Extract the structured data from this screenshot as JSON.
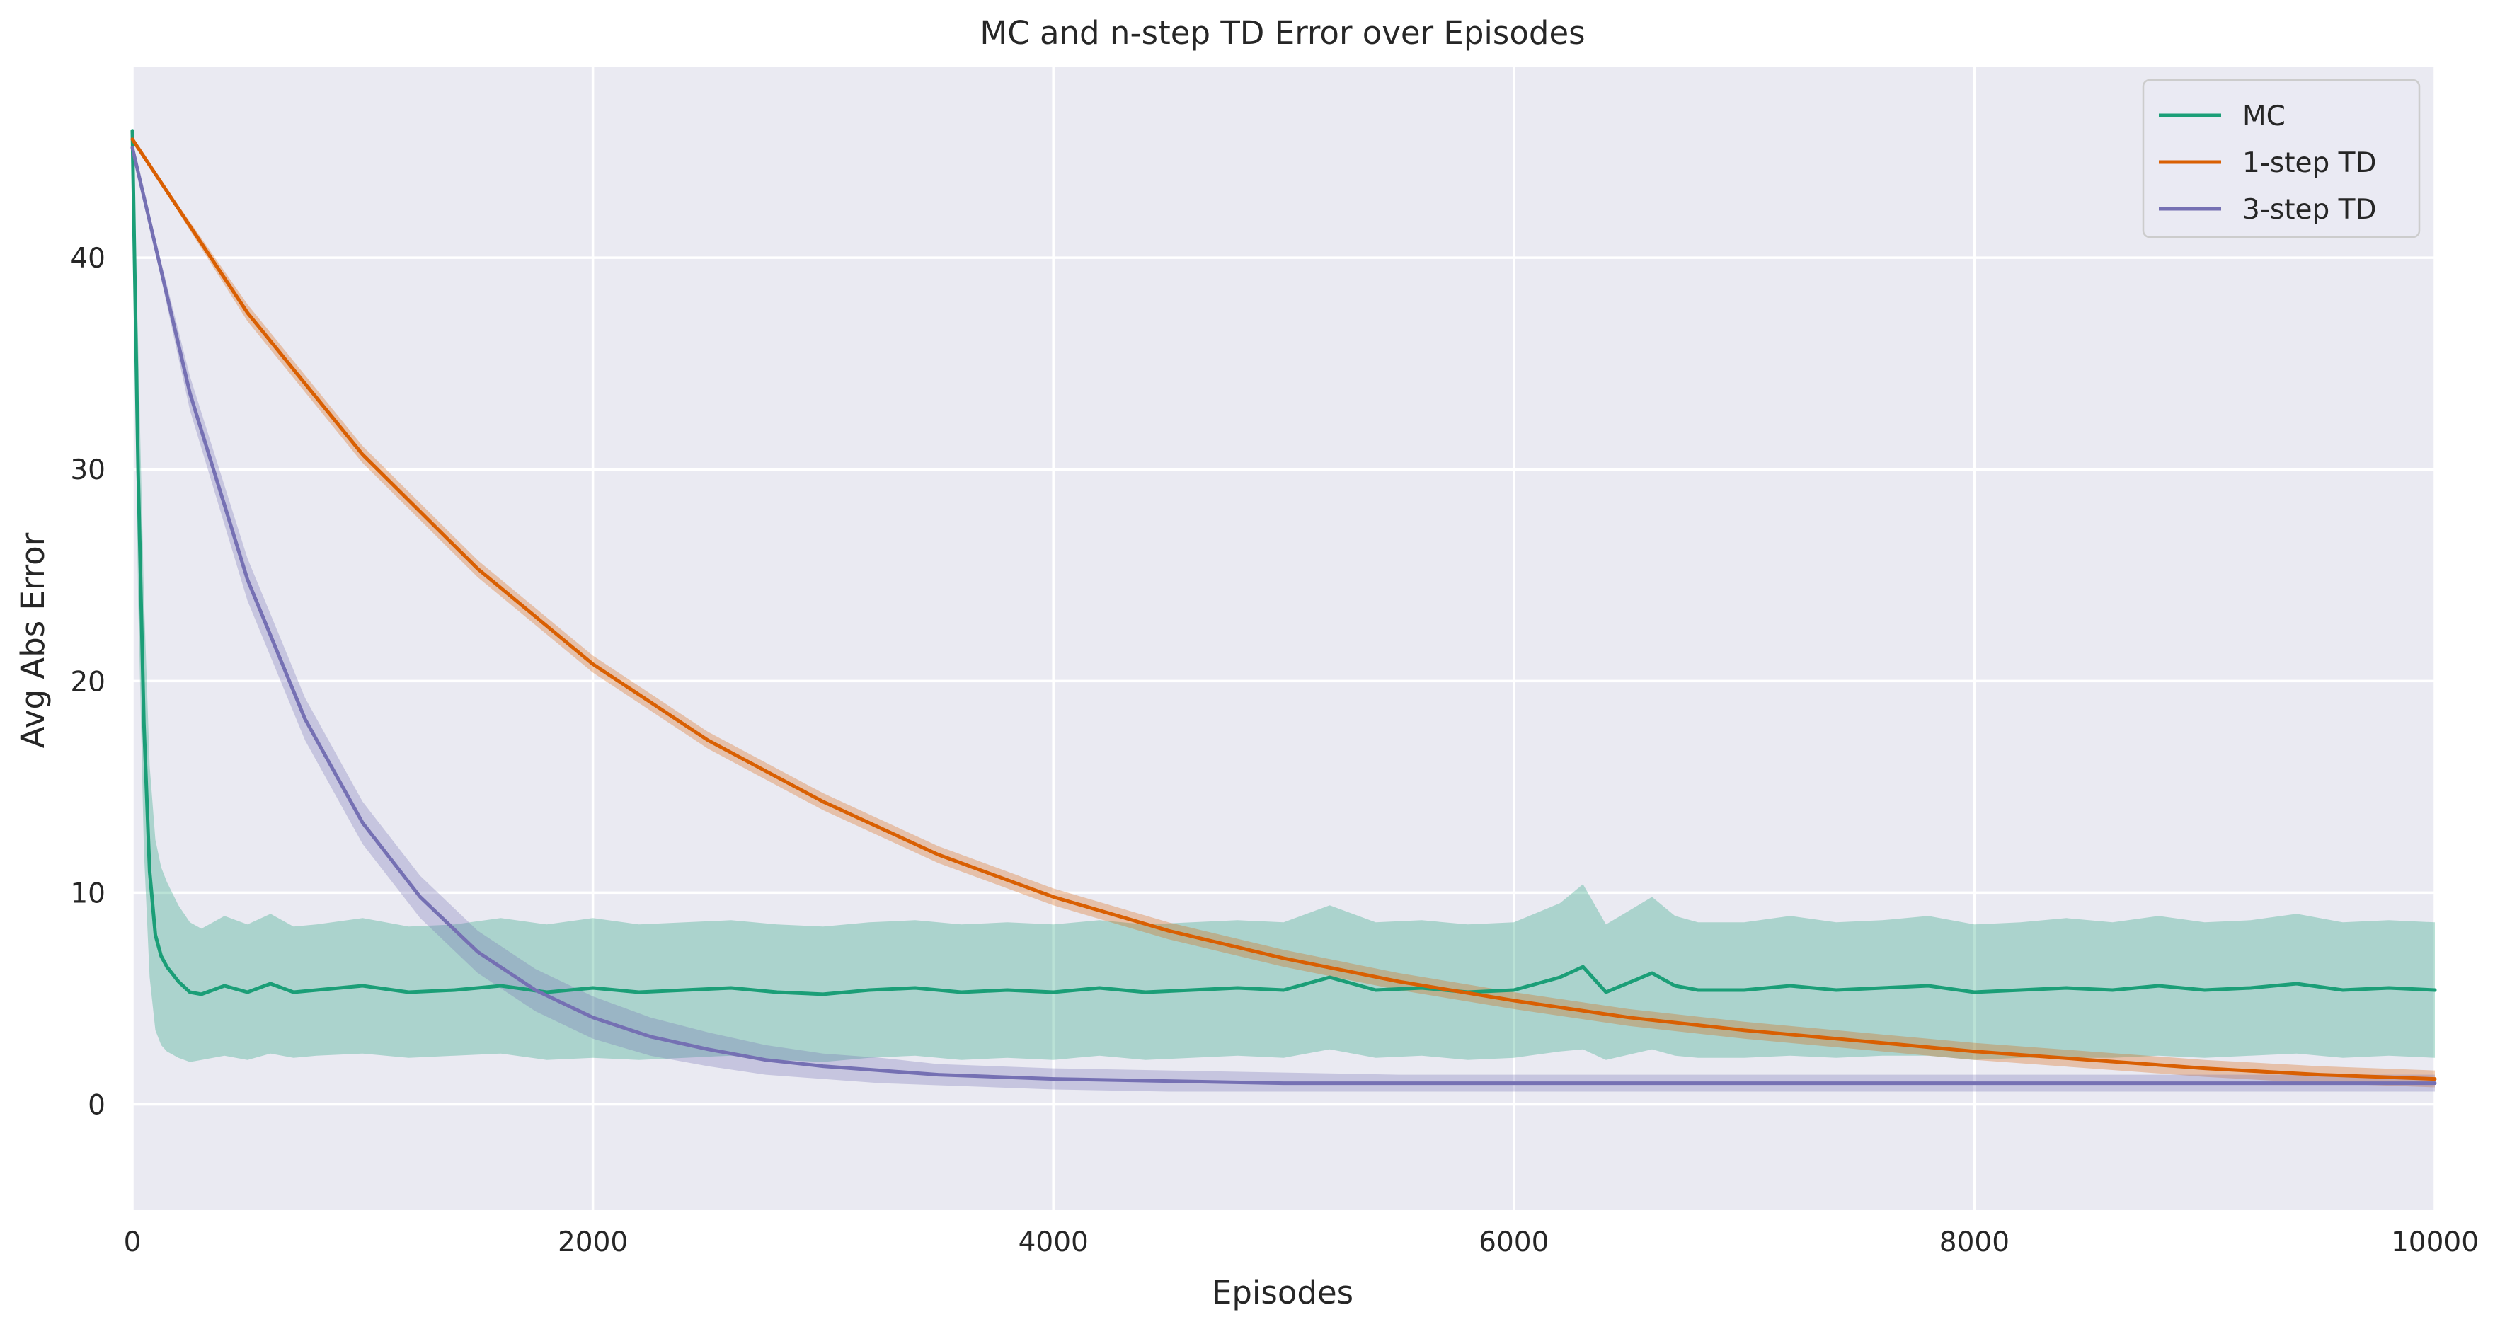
{
  "chart_data": {
    "type": "line",
    "title": "MC and n-step TD Error over Episodes",
    "xlabel": "Episodes",
    "ylabel": "Avg Abs Error",
    "xlim": [
      0,
      10000
    ],
    "ylim": [
      -5,
      49
    ],
    "xticks": [
      0,
      2000,
      4000,
      6000,
      8000,
      10000
    ],
    "yticks": [
      0,
      10,
      20,
      30,
      40
    ],
    "xtick_labels": [
      "0",
      "2000",
      "4000",
      "6000",
      "8000",
      "10000"
    ],
    "ytick_labels": [
      "0",
      "10",
      "20",
      "30",
      "40"
    ],
    "grid": true,
    "legend_position": "top-right",
    "colors": {
      "background": "#eaeaf2",
      "grid": "#ffffff",
      "mc": "#1b9e77",
      "td1": "#d95f02",
      "td3": "#7570b3"
    },
    "series": [
      {
        "name": "MC",
        "color": "#1b9e77",
        "x": [
          0,
          25,
          50,
          75,
          100,
          125,
          150,
          200,
          250,
          300,
          400,
          500,
          600,
          700,
          800,
          1000,
          1200,
          1400,
          1600,
          1800,
          2000,
          2200,
          2400,
          2600,
          2800,
          3000,
          3200,
          3400,
          3600,
          3800,
          4000,
          4200,
          4400,
          4600,
          4800,
          5000,
          5200,
          5400,
          5600,
          5800,
          6000,
          6200,
          6300,
          6400,
          6600,
          6700,
          6800,
          7000,
          7200,
          7400,
          7600,
          7800,
          8000,
          8200,
          8400,
          8600,
          8800,
          9000,
          9200,
          9400,
          9600,
          9800,
          10000
        ],
        "y": [
          46,
          30,
          18,
          11,
          8,
          7,
          6.5,
          5.8,
          5.3,
          5.2,
          5.6,
          5.3,
          5.7,
          5.3,
          5.4,
          5.6,
          5.3,
          5.4,
          5.6,
          5.3,
          5.5,
          5.3,
          5.4,
          5.5,
          5.3,
          5.2,
          5.4,
          5.5,
          5.3,
          5.4,
          5.3,
          5.5,
          5.3,
          5.4,
          5.5,
          5.4,
          6.0,
          5.4,
          5.5,
          5.3,
          5.4,
          6.0,
          6.5,
          5.3,
          6.2,
          5.6,
          5.4,
          5.4,
          5.6,
          5.4,
          5.5,
          5.6,
          5.3,
          5.4,
          5.5,
          5.4,
          5.6,
          5.4,
          5.5,
          5.7,
          5.4,
          5.5,
          5.4
        ],
        "lower": [
          46,
          24,
          12,
          6,
          3.5,
          2.8,
          2.5,
          2.2,
          2.0,
          2.1,
          2.3,
          2.1,
          2.4,
          2.2,
          2.3,
          2.4,
          2.2,
          2.3,
          2.4,
          2.1,
          2.2,
          2.1,
          2.2,
          2.3,
          2.1,
          2.0,
          2.2,
          2.3,
          2.1,
          2.2,
          2.1,
          2.3,
          2.1,
          2.2,
          2.3,
          2.2,
          2.6,
          2.2,
          2.3,
          2.1,
          2.2,
          2.5,
          2.6,
          2.1,
          2.6,
          2.3,
          2.2,
          2.2,
          2.3,
          2.2,
          2.3,
          2.3,
          2.1,
          2.2,
          2.2,
          2.2,
          2.3,
          2.2,
          2.3,
          2.4,
          2.2,
          2.3,
          2.2
        ],
        "upper": [
          46,
          36,
          24,
          16,
          12.5,
          11.2,
          10.5,
          9.4,
          8.6,
          8.3,
          8.9,
          8.5,
          9.0,
          8.4,
          8.5,
          8.8,
          8.4,
          8.5,
          8.8,
          8.5,
          8.8,
          8.5,
          8.6,
          8.7,
          8.5,
          8.4,
          8.6,
          8.7,
          8.5,
          8.6,
          8.5,
          8.7,
          8.5,
          8.6,
          8.7,
          8.6,
          9.4,
          8.6,
          8.7,
          8.5,
          8.6,
          9.5,
          10.4,
          8.5,
          9.8,
          8.9,
          8.6,
          8.6,
          8.9,
          8.6,
          8.7,
          8.9,
          8.5,
          8.6,
          8.8,
          8.6,
          8.9,
          8.6,
          8.7,
          9.0,
          8.6,
          8.7,
          8.6
        ]
      },
      {
        "name": "1-step TD",
        "color": "#d95f02",
        "x": [
          0,
          500,
          1000,
          1500,
          2000,
          2500,
          3000,
          3500,
          4000,
          4500,
          5000,
          5500,
          6000,
          6500,
          7000,
          7500,
          8000,
          8500,
          9000,
          9500,
          10000
        ],
        "y": [
          45.6,
          37.4,
          30.7,
          25.3,
          20.8,
          17.2,
          14.3,
          11.8,
          9.8,
          8.2,
          6.9,
          5.8,
          4.9,
          4.1,
          3.5,
          3.0,
          2.5,
          2.1,
          1.7,
          1.4,
          1.2
        ],
        "lower": [
          45.6,
          37.0,
          30.3,
          24.9,
          20.4,
          16.8,
          13.9,
          11.4,
          9.4,
          7.8,
          6.5,
          5.4,
          4.5,
          3.7,
          3.1,
          2.6,
          2.1,
          1.7,
          1.3,
          1.0,
          0.8
        ],
        "upper": [
          45.6,
          37.8,
          31.1,
          25.7,
          21.2,
          17.6,
          14.7,
          12.2,
          10.2,
          8.6,
          7.3,
          6.2,
          5.3,
          4.5,
          3.9,
          3.4,
          2.9,
          2.5,
          2.1,
          1.8,
          1.6
        ]
      },
      {
        "name": "3-step TD",
        "color": "#7570b3",
        "x": [
          0,
          250,
          500,
          750,
          1000,
          1250,
          1500,
          1750,
          2000,
          2250,
          2500,
          2750,
          3000,
          3250,
          3500,
          3750,
          4000,
          4500,
          5000,
          5500,
          6000,
          6500,
          7000,
          7500,
          8000,
          8500,
          9000,
          9500,
          10000
        ],
        "y": [
          45.2,
          33.6,
          24.8,
          18.2,
          13.3,
          9.8,
          7.2,
          5.4,
          4.1,
          3.2,
          2.6,
          2.1,
          1.8,
          1.6,
          1.4,
          1.3,
          1.2,
          1.1,
          1.0,
          1.0,
          1.0,
          1.0,
          1.0,
          1.0,
          1.0,
          1.0,
          1.0,
          1.0,
          1.0
        ],
        "lower": [
          45.2,
          32.8,
          23.8,
          17.2,
          12.3,
          8.8,
          6.2,
          4.4,
          3.1,
          2.3,
          1.8,
          1.4,
          1.2,
          1.0,
          0.9,
          0.8,
          0.7,
          0.6,
          0.6,
          0.6,
          0.6,
          0.6,
          0.6,
          0.6,
          0.6,
          0.6,
          0.6,
          0.6,
          0.6
        ],
        "upper": [
          45.2,
          34.4,
          25.8,
          19.2,
          14.3,
          10.8,
          8.2,
          6.4,
          5.1,
          4.1,
          3.4,
          2.8,
          2.4,
          2.2,
          1.9,
          1.8,
          1.7,
          1.6,
          1.5,
          1.4,
          1.4,
          1.4,
          1.4,
          1.4,
          1.4,
          1.4,
          1.4,
          1.4,
          1.4
        ]
      }
    ]
  }
}
